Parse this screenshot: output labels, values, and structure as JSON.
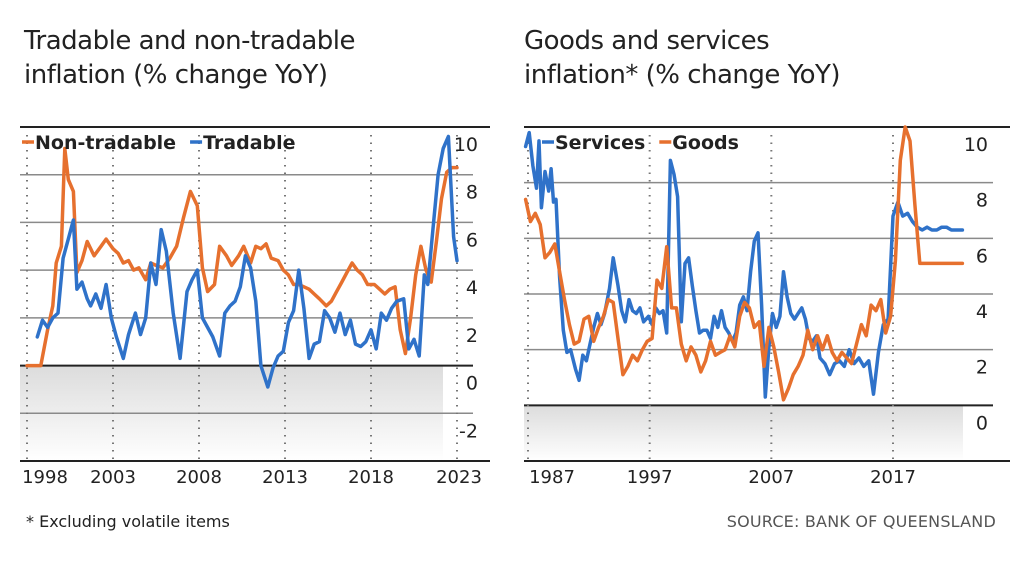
{
  "footnote": "* Excluding volatile items",
  "source": "SOURCE: BANK OF QUEENSLAND",
  "colors": {
    "orange": "#e6702e",
    "blue": "#2f72c9",
    "grid": "#888888",
    "zero": "#222222"
  },
  "chart_data": [
    {
      "type": "line",
      "title": "Tradable and non-tradable inflation (% change YoY)",
      "xlabel": "",
      "ylabel": "",
      "xlim": [
        1998,
        2023.3
      ],
      "ylim": [
        -4,
        10
      ],
      "yticks": [
        10,
        8,
        6,
        4,
        2,
        0,
        -2
      ],
      "xticks": [
        1998,
        2003,
        2008,
        2013,
        2018,
        2023
      ],
      "legend": "top-left",
      "series": [
        {
          "name": "Non-tradable",
          "color": "#e6702e",
          "x": [
            1998,
            1998.8,
            1999.2,
            1999.5,
            1999.7,
            2000,
            2000.2,
            2000.4,
            2000.7,
            2000.9,
            2001.2,
            2001.5,
            2001.9,
            2002.3,
            2002.6,
            2003,
            2003.3,
            2003.6,
            2003.9,
            2004.2,
            2004.5,
            2004.9,
            2005.2,
            2005.5,
            2005.9,
            2006.3,
            2006.7,
            2007.1,
            2007.5,
            2007.9,
            2008.2,
            2008.5,
            2008.9,
            2009.2,
            2009.6,
            2009.9,
            2010.3,
            2010.6,
            2011,
            2011.3,
            2011.6,
            2011.9,
            2012.2,
            2012.6,
            2012.9,
            2013.2,
            2013.5,
            2013.8,
            2014.1,
            2014.4,
            2014.7,
            2015,
            2015.4,
            2015.7,
            2016,
            2016.3,
            2016.6,
            2016.9,
            2017.2,
            2017.5,
            2017.8,
            2018.2,
            2018.5,
            2018.8,
            2019.1,
            2019.4,
            2019.7,
            2020,
            2020.3,
            2020.6,
            2020.9,
            2021.2,
            2021.5,
            2021.8,
            2022.1,
            2022.4,
            2022.7,
            2023
          ],
          "values": [
            0,
            0,
            1.5,
            2.5,
            4.3,
            5,
            9.1,
            7.8,
            7.3,
            3.9,
            4.4,
            5.2,
            4.6,
            5,
            5.3,
            4.9,
            4.7,
            4.3,
            4.4,
            4,
            4.1,
            3.6,
            4.3,
            4.2,
            4.1,
            4.5,
            5,
            6.2,
            7.3,
            6.7,
            4.1,
            3.1,
            3.4,
            5,
            4.6,
            4.2,
            4.6,
            5,
            4.3,
            5,
            4.9,
            5.1,
            4.5,
            4.4,
            4,
            3.8,
            3.4,
            3.4,
            3.3,
            3.2,
            3,
            2.8,
            2.5,
            2.7,
            3.1,
            3.5,
            3.9,
            4.3,
            4,
            3.8,
            3.4,
            3.4,
            3.2,
            3,
            3.2,
            3.3,
            1.5,
            0.5,
            2,
            3.8,
            5,
            4,
            3.5,
            5.2,
            7,
            8.1,
            8.3,
            8.3
          ]
        },
        {
          "name": "Tradable",
          "color": "#2f72c9",
          "x": [
            1998.6,
            1998.9,
            1999.2,
            1999.5,
            1999.8,
            2000.1,
            2000.4,
            2000.7,
            2000.9,
            2001.2,
            2001.5,
            2001.7,
            2002,
            2002.3,
            2002.6,
            2002.9,
            2003.2,
            2003.6,
            2003.9,
            2004.3,
            2004.6,
            2004.9,
            2005.2,
            2005.5,
            2005.8,
            2006.1,
            2006.5,
            2006.9,
            2007.3,
            2007.6,
            2007.9,
            2008.2,
            2008.5,
            2008.8,
            2009.2,
            2009.5,
            2009.8,
            2010.1,
            2010.4,
            2010.7,
            2011,
            2011.3,
            2011.6,
            2012,
            2012.3,
            2012.6,
            2012.9,
            2013.2,
            2013.5,
            2013.8,
            2014.1,
            2014.4,
            2014.7,
            2015,
            2015.3,
            2015.6,
            2015.9,
            2016.2,
            2016.5,
            2016.8,
            2017.1,
            2017.4,
            2017.7,
            2018,
            2018.3,
            2018.6,
            2018.9,
            2019.2,
            2019.5,
            2019.9,
            2020.2,
            2020.5,
            2020.8,
            2021.1,
            2021.3,
            2021.6,
            2021.9,
            2022.2,
            2022.5,
            2022.8,
            2023
          ],
          "values": [
            1.2,
            1.9,
            1.6,
            2,
            2.2,
            4.5,
            5.3,
            6.1,
            3.2,
            3.5,
            2.8,
            2.5,
            3,
            2.4,
            3.4,
            2,
            1.2,
            0.3,
            1.3,
            2.2,
            1.3,
            2,
            4.3,
            3.4,
            5.7,
            4.8,
            2.2,
            0.3,
            3.1,
            3.6,
            4,
            2,
            1.6,
            1.2,
            0.4,
            2.2,
            2.5,
            2.7,
            3.3,
            4.6,
            4.1,
            2.7,
            0,
            -0.9,
            -0.1,
            0.4,
            0.6,
            1.8,
            2.3,
            4,
            2.4,
            0.3,
            0.9,
            1,
            2.3,
            2,
            1.4,
            2.2,
            1.3,
            1.9,
            0.9,
            0.8,
            1,
            1.5,
            0.7,
            2.2,
            1.9,
            2.4,
            2.7,
            2.8,
            0.7,
            1.1,
            0.4,
            3.8,
            3.4,
            5.7,
            8,
            9.1,
            9.6,
            5.4,
            4.4
          ]
        }
      ]
    },
    {
      "type": "line",
      "title": "Goods and services inflation* (% change YoY)",
      "xlabel": "",
      "ylabel": "",
      "xlim": [
        1987,
        2024
      ],
      "ylim": [
        -2,
        10
      ],
      "yticks": [
        10,
        8,
        6,
        4,
        2,
        0
      ],
      "xticks": [
        1987,
        1997,
        2007,
        2017
      ],
      "legend": "top-left",
      "series": [
        {
          "name": "Services",
          "color": "#2f72c9",
          "x": [
            1986.8,
            1987.1,
            1987.4,
            1987.7,
            1987.9,
            1988.1,
            1988.4,
            1988.7,
            1988.9,
            1989.1,
            1989.3,
            1989.6,
            1989.9,
            1990.2,
            1990.5,
            1990.9,
            1991.2,
            1991.5,
            1991.8,
            1992.1,
            1992.4,
            1992.7,
            1993,
            1993.3,
            1993.7,
            1994,
            1994.4,
            1994.7,
            1995,
            1995.3,
            1995.6,
            1995.9,
            1996.2,
            1996.5,
            1996.9,
            1997.2,
            1997.5,
            1997.8,
            1998.1,
            1998.4,
            1998.7,
            1999,
            1999.3,
            1999.6,
            1999.9,
            2000.2,
            2000.5,
            2000.8,
            2001.1,
            2001.4,
            2001.7,
            2002,
            2002.3,
            2002.6,
            2002.9,
            2003.2,
            2003.5,
            2003.8,
            2004.1,
            2004.4,
            2004.7,
            2005,
            2005.3,
            2005.6,
            2005.9,
            2006.2,
            2006.5,
            2006.8,
            2007.1,
            2007.4,
            2007.7,
            2008,
            2008.3,
            2008.6,
            2008.9,
            2009.2,
            2009.5,
            2009.8,
            2010.1,
            2010.4,
            2010.7,
            2011,
            2011.4,
            2011.8,
            2012.2,
            2012.6,
            2013,
            2013.4,
            2013.8,
            2014.2,
            2014.6,
            2015,
            2015.4,
            2015.8,
            2016.2,
            2016.6,
            2017,
            2017.4,
            2017.8,
            2018.2,
            2018.6,
            2019,
            2019.4,
            2019.8,
            2020.2,
            2020.6,
            2021,
            2021.4,
            2021.8,
            2022.1,
            2022.4,
            2022.7
          ],
          "values": [
            9.3,
            9.8,
            8.6,
            7.8,
            9.5,
            7.1,
            8.4,
            7.7,
            8.5,
            7.3,
            7.4,
            4.6,
            2.7,
            1.9,
            2,
            1.3,
            0.9,
            1.8,
            1.6,
            2.2,
            2.8,
            3.3,
            2.9,
            3.3,
            4.2,
            5.3,
            4.3,
            3.4,
            3,
            3.8,
            3.4,
            3.3,
            3.5,
            3,
            3.2,
            2.9,
            3.5,
            3.3,
            3.4,
            2.6,
            8.8,
            8.3,
            7.5,
            3,
            5.1,
            5.3,
            4.3,
            3.4,
            2.6,
            2.7,
            2.7,
            2.4,
            3.2,
            2.8,
            3.4,
            2.8,
            2.6,
            2.3,
            2.6,
            3.6,
            3.9,
            3.4,
            4.8,
            5.9,
            6.2,
            3.6,
            0.3,
            2.1,
            3.3,
            2.8,
            3.2,
            4.8,
            3.9,
            3.3,
            3.1,
            3.3,
            3.5,
            3.1,
            2.4,
            2.3,
            2.5,
            1.7,
            1.5,
            1.1,
            1.5,
            1.6,
            1.4,
            2,
            1.5,
            1.7,
            1.4,
            1.6,
            0.4,
            1.9,
            2.9,
            3.1,
            6.8,
            7.3,
            6.8,
            6.9,
            6.6,
            6.4,
            6.3,
            6.4,
            6.3,
            6.3,
            6.4,
            6.4,
            6.3,
            6.3,
            6.3,
            6.3
          ],
          "note": "approximate readings"
        },
        {
          "name": "Goods",
          "color": "#e6702e",
          "x": [
            1986.8,
            1987.2,
            1987.6,
            1988,
            1988.4,
            1988.8,
            1989.2,
            1989.6,
            1990,
            1990.4,
            1990.8,
            1991.2,
            1991.6,
            1992,
            1992.4,
            1992.8,
            1993.2,
            1993.6,
            1994,
            1994.4,
            1994.8,
            1995.2,
            1995.6,
            1996,
            1996.4,
            1996.8,
            1997.2,
            1997.6,
            1998,
            1998.4,
            1998.8,
            1999.2,
            1999.6,
            2000,
            2000.4,
            2000.8,
            2001.2,
            2001.6,
            2002,
            2002.4,
            2002.8,
            2003.2,
            2003.6,
            2004,
            2004.4,
            2004.8,
            2005.2,
            2005.6,
            2006,
            2006.4,
            2006.8,
            2007.2,
            2007.6,
            2008,
            2008.4,
            2008.8,
            2009.2,
            2009.6,
            2010,
            2010.4,
            2010.8,
            2011.2,
            2011.6,
            2012,
            2012.4,
            2012.8,
            2013.2,
            2013.6,
            2014,
            2014.4,
            2014.8,
            2015.2,
            2015.6,
            2016,
            2016.4,
            2016.8,
            2017.2,
            2017.6,
            2018,
            2018.4,
            2018.8,
            2019.2,
            2019.6,
            2020,
            2020.4,
            2020.8,
            2021.2,
            2021.6,
            2022,
            2022.4,
            2022.7
          ],
          "values": [
            7.4,
            6.6,
            6.9,
            6.5,
            5.3,
            5.5,
            5.8,
            4.8,
            3.8,
            2.9,
            2.2,
            2.3,
            3.1,
            3.2,
            2.3,
            2.8,
            3.2,
            3.8,
            3.7,
            2.4,
            1.1,
            1.4,
            1.8,
            1.6,
            2,
            2.3,
            2.4,
            4.5,
            4.2,
            5.7,
            3.5,
            3.5,
            2.2,
            1.6,
            2.1,
            1.8,
            1.2,
            1.6,
            2.3,
            1.8,
            1.9,
            2,
            2.5,
            2.1,
            3.2,
            3.7,
            3.5,
            2.8,
            3,
            1.4,
            2.8,
            2.1,
            1.2,
            0.2,
            0.6,
            1.1,
            1.4,
            1.8,
            2.7,
            2,
            2.5,
            2,
            2.5,
            1.9,
            1.6,
            1.9,
            1.7,
            1.5,
            2.2,
            2.9,
            2.5,
            3.6,
            3.4,
            3.8,
            2.6,
            3.2,
            5.2,
            8.8,
            10,
            9.5,
            7.2,
            5.1,
            5.1,
            5.1,
            5.1,
            5.1,
            5.1,
            5.1,
            5.1,
            5.1,
            5.1
          ]
        }
      ]
    }
  ]
}
